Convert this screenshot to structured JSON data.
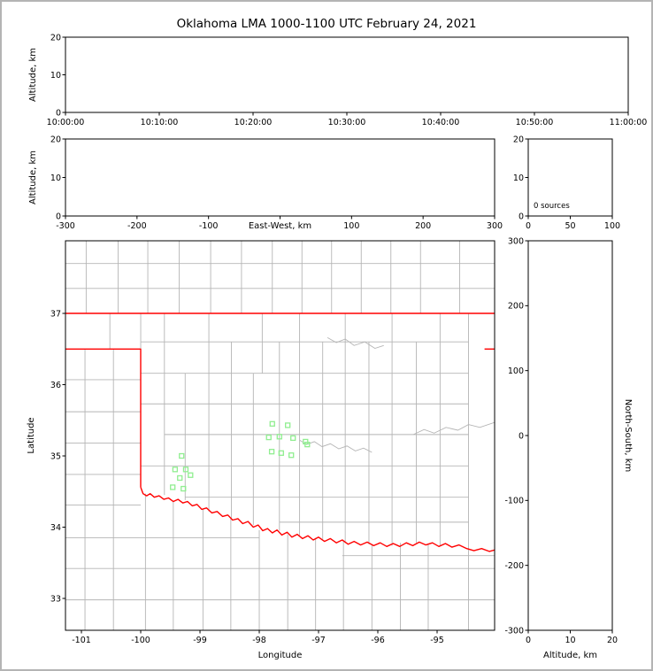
{
  "title": "Oklahoma LMA 1000-1100 UTC February 24, 2021",
  "colors": {
    "state_border": "#ff0000",
    "county_line": "#b5b5b5",
    "station_marker": "#90ee90",
    "axis": "#000000",
    "background": "#ffffff",
    "frame": "#b4b4b4"
  },
  "panels": {
    "time_height": {
      "ylabel": "Altitude, km",
      "yticks": [
        0,
        10,
        20
      ],
      "ylim": [
        0,
        20
      ],
      "xticks": [
        "10:00:00",
        "10:10:00",
        "10:20:00",
        "10:30:00",
        "10:40:00",
        "10:50:00",
        "11:00:00"
      ]
    },
    "ew_height": {
      "ylabel": "Altitude, km",
      "xlabel": "East-West, km",
      "yticks": [
        0,
        10,
        20
      ],
      "ylim": [
        0,
        20
      ],
      "xticks": [
        -300,
        -200,
        -100,
        0,
        100,
        200,
        300
      ],
      "xlim": [
        -300,
        300
      ]
    },
    "histogram": {
      "annotation": "0 sources",
      "xticks": [
        0,
        50,
        100
      ],
      "xlim": [
        0,
        100
      ],
      "yticks": [
        0,
        10,
        20
      ],
      "ylim": [
        0,
        20
      ]
    },
    "map": {
      "xlabel": "Longitude",
      "ylabel": "Latitude",
      "xticks": [
        -101,
        -100,
        -99,
        -98,
        -97,
        -96,
        -95
      ],
      "yticks": [
        33,
        34,
        35,
        36,
        37
      ],
      "lon_range": [
        -101.269,
        -94.03
      ],
      "lat_range": [
        32.553,
        38.019
      ]
    },
    "ns_height": {
      "xlabel": "Altitude, km",
      "ylabel_right": "North-South, km",
      "xticks": [
        0,
        10,
        20
      ],
      "xlim": [
        0,
        20
      ],
      "yticks": [
        -300,
        -200,
        -100,
        0,
        100,
        200,
        300
      ],
      "ylim": [
        -300,
        300
      ]
    }
  },
  "chart_data": [
    {
      "type": "scatter",
      "name": "altitude-vs-time",
      "ylabel": "Altitude, km",
      "ylim": [
        0,
        20
      ],
      "x_tick_labels": [
        "10:00:00",
        "10:10:00",
        "10:20:00",
        "10:30:00",
        "10:40:00",
        "10:50:00",
        "11:00:00"
      ],
      "points": []
    },
    {
      "type": "scatter",
      "name": "altitude-vs-east-west",
      "xlabel": "East-West, km",
      "ylabel": "Altitude, km",
      "xlim": [
        -300,
        300
      ],
      "ylim": [
        0,
        20
      ],
      "points": []
    },
    {
      "type": "histogram",
      "name": "altitude-source-histogram",
      "annotation": "0 sources",
      "xlim": [
        0,
        100
      ],
      "ylim": [
        0,
        20
      ],
      "values": []
    },
    {
      "type": "scatter",
      "name": "plan-view-map",
      "xlabel": "Longitude",
      "ylabel": "Latitude",
      "xlim": [
        -101.269,
        -94.03
      ],
      "ylim": [
        32.553,
        38.019
      ],
      "series": [
        {
          "name": "lma-stations",
          "marker": "open-square",
          "color": "#90ee90",
          "points": [
            [
              -97.78,
              35.45
            ],
            [
              -97.52,
              35.43
            ],
            [
              -97.84,
              35.26
            ],
            [
              -97.66,
              35.27
            ],
            [
              -97.43,
              35.25
            ],
            [
              -97.22,
              35.2
            ],
            [
              -97.79,
              35.06
            ],
            [
              -97.63,
              35.04
            ],
            [
              -97.46,
              35.01
            ],
            [
              -97.19,
              35.16
            ],
            [
              -99.31,
              35.0
            ],
            [
              -99.42,
              34.81
            ],
            [
              -99.24,
              34.81
            ],
            [
              -99.34,
              34.69
            ],
            [
              -99.16,
              34.73
            ],
            [
              -99.46,
              34.56
            ],
            [
              -99.28,
              34.54
            ]
          ]
        }
      ]
    },
    {
      "type": "scatter",
      "name": "north-south-vs-altitude",
      "xlabel": "Altitude, km",
      "ylabel": "North-South, km",
      "xlim": [
        0,
        20
      ],
      "ylim": [
        -300,
        300
      ],
      "points": []
    }
  ],
  "map_layers": {
    "state_border_polylines": [
      [
        [
          -101.269,
          37.0
        ],
        [
          -94.03,
          37.0
        ]
      ],
      [
        [
          -101.269,
          36.5
        ],
        [
          -100.0,
          36.5
        ],
        [
          -100.0,
          34.56
        ]
      ],
      [
        [
          -94.2,
          36.5
        ],
        [
          -94.03,
          36.5
        ]
      ],
      [
        [
          -100.0,
          34.56
        ],
        [
          -99.96,
          34.47
        ],
        [
          -99.9,
          34.44
        ],
        [
          -99.84,
          34.47
        ],
        [
          -99.77,
          34.42
        ],
        [
          -99.69,
          34.44
        ],
        [
          -99.61,
          34.39
        ],
        [
          -99.53,
          34.41
        ],
        [
          -99.45,
          34.36
        ],
        [
          -99.37,
          34.39
        ],
        [
          -99.29,
          34.34
        ],
        [
          -99.21,
          34.36
        ],
        [
          -99.13,
          34.3
        ],
        [
          -99.05,
          34.32
        ],
        [
          -98.97,
          34.25
        ],
        [
          -98.89,
          34.27
        ],
        [
          -98.8,
          34.2
        ],
        [
          -98.71,
          34.22
        ],
        [
          -98.62,
          34.15
        ],
        [
          -98.53,
          34.17
        ],
        [
          -98.45,
          34.1
        ],
        [
          -98.36,
          34.12
        ],
        [
          -98.28,
          34.05
        ],
        [
          -98.19,
          34.08
        ],
        [
          -98.1,
          34.0
        ],
        [
          -98.02,
          34.03
        ],
        [
          -97.94,
          33.95
        ],
        [
          -97.86,
          33.98
        ],
        [
          -97.78,
          33.92
        ],
        [
          -97.7,
          33.96
        ],
        [
          -97.62,
          33.89
        ],
        [
          -97.53,
          33.93
        ],
        [
          -97.45,
          33.86
        ],
        [
          -97.36,
          33.9
        ],
        [
          -97.27,
          33.84
        ],
        [
          -97.18,
          33.88
        ],
        [
          -97.09,
          33.82
        ],
        [
          -97.0,
          33.86
        ],
        [
          -96.9,
          33.8
        ],
        [
          -96.8,
          33.84
        ],
        [
          -96.7,
          33.78
        ],
        [
          -96.6,
          33.82
        ],
        [
          -96.5,
          33.76
        ],
        [
          -96.4,
          33.8
        ],
        [
          -96.29,
          33.75
        ],
        [
          -96.18,
          33.79
        ],
        [
          -96.07,
          33.74
        ],
        [
          -95.96,
          33.78
        ],
        [
          -95.85,
          33.73
        ],
        [
          -95.74,
          33.77
        ],
        [
          -95.63,
          33.73
        ],
        [
          -95.52,
          33.78
        ],
        [
          -95.41,
          33.74
        ],
        [
          -95.3,
          33.79
        ],
        [
          -95.19,
          33.75
        ],
        [
          -95.08,
          33.78
        ],
        [
          -94.97,
          33.73
        ],
        [
          -94.86,
          33.77
        ],
        [
          -94.75,
          33.72
        ],
        [
          -94.63,
          33.75
        ],
        [
          -94.5,
          33.7
        ],
        [
          -94.38,
          33.67
        ],
        [
          -94.25,
          33.7
        ],
        [
          -94.12,
          33.66
        ],
        [
          -94.03,
          33.68
        ]
      ]
    ],
    "county_vertical_lines": [
      [
        -100.92,
        37,
        38.02
      ],
      [
        -100.38,
        37,
        38.02
      ],
      [
        -99.88,
        37,
        38.02
      ],
      [
        -99.35,
        37,
        38.02
      ],
      [
        -98.82,
        37,
        38.02
      ],
      [
        -98.3,
        37,
        38.02
      ],
      [
        -97.78,
        37,
        38.02
      ],
      [
        -97.28,
        37,
        38.02
      ],
      [
        -96.78,
        37,
        38.02
      ],
      [
        -96.28,
        37,
        38.02
      ],
      [
        -95.78,
        37,
        38.02
      ],
      [
        -95.28,
        37,
        38.02
      ],
      [
        -94.62,
        37,
        38.02
      ],
      [
        -100.94,
        32.55,
        36.5
      ],
      [
        -100.46,
        32.55,
        36.5
      ],
      [
        -100.52,
        36.5,
        37
      ],
      [
        -100.0,
        36.5,
        37
      ],
      [
        -99.6,
        34.45,
        37
      ],
      [
        -99.25,
        34.38,
        36.16
      ],
      [
        -98.85,
        34.22,
        37
      ],
      [
        -98.47,
        34.12,
        36.6
      ],
      [
        -98.1,
        34.03,
        36.16
      ],
      [
        -97.95,
        36.16,
        37
      ],
      [
        -97.66,
        33.95,
        36.6
      ],
      [
        -97.32,
        33.88,
        37
      ],
      [
        -96.93,
        33.83,
        36.6
      ],
      [
        -96.55,
        33.78,
        37
      ],
      [
        -96.15,
        33.76,
        36.6
      ],
      [
        -95.76,
        33.74,
        37
      ],
      [
        -95.35,
        33.78,
        36.6
      ],
      [
        -94.95,
        33.74,
        37
      ],
      [
        -94.47,
        32.55,
        37
      ],
      [
        -99.92,
        32.55,
        34.47
      ],
      [
        -99.45,
        32.55,
        34.37
      ],
      [
        -98.95,
        32.55,
        34.25
      ],
      [
        -98.48,
        32.55,
        34.12
      ],
      [
        -98.0,
        32.55,
        33.96
      ],
      [
        -97.52,
        32.55,
        33.9
      ],
      [
        -97.05,
        32.55,
        33.85
      ],
      [
        -96.58,
        32.55,
        33.8
      ],
      [
        -96.1,
        32.55,
        33.76
      ],
      [
        -95.62,
        32.55,
        33.78
      ],
      [
        -95.15,
        32.55,
        33.77
      ]
    ],
    "county_horizontal_lines": [
      [
        37.35,
        -101.27,
        -94.03
      ],
      [
        37.7,
        -101.27,
        -94.03
      ],
      [
        36.07,
        -101.27,
        -100.0
      ],
      [
        35.62,
        -101.27,
        -100.0
      ],
      [
        35.18,
        -101.27,
        -100.0
      ],
      [
        34.74,
        -101.27,
        -100.0
      ],
      [
        34.31,
        -101.27,
        -100.0
      ],
      [
        33.85,
        -101.27,
        -98.0
      ],
      [
        33.42,
        -101.27,
        -94.03
      ],
      [
        32.98,
        -101.27,
        -94.03
      ],
      [
        33.6,
        -96.6,
        -94.03
      ],
      [
        36.6,
        -100.0,
        -94.47
      ],
      [
        36.16,
        -100.0,
        -94.47
      ],
      [
        35.73,
        -100.0,
        -94.47
      ],
      [
        35.3,
        -99.6,
        -94.47
      ],
      [
        34.86,
        -100.0,
        -94.47
      ],
      [
        34.42,
        -99.25,
        -94.47
      ],
      [
        34.07,
        -97.66,
        -94.47
      ]
    ],
    "river_polylines": [
      [
        [
          -97.32,
          35.22
        ],
        [
          -97.2,
          35.16
        ],
        [
          -97.07,
          35.2
        ],
        [
          -96.94,
          35.13
        ],
        [
          -96.8,
          35.17
        ],
        [
          -96.66,
          35.1
        ],
        [
          -96.52,
          35.14
        ],
        [
          -96.38,
          35.07
        ],
        [
          -96.24,
          35.11
        ],
        [
          -96.1,
          35.05
        ]
      ],
      [
        [
          -96.85,
          36.66
        ],
        [
          -96.7,
          36.59
        ],
        [
          -96.55,
          36.64
        ],
        [
          -96.4,
          36.55
        ],
        [
          -96.22,
          36.6
        ],
        [
          -96.05,
          36.51
        ],
        [
          -95.9,
          36.55
        ]
      ],
      [
        [
          -95.4,
          35.3
        ],
        [
          -95.22,
          35.37
        ],
        [
          -95.05,
          35.32
        ],
        [
          -94.85,
          35.4
        ],
        [
          -94.65,
          35.36
        ],
        [
          -94.47,
          35.44
        ],
        [
          -94.28,
          35.4
        ],
        [
          -94.03,
          35.47
        ]
      ]
    ]
  }
}
